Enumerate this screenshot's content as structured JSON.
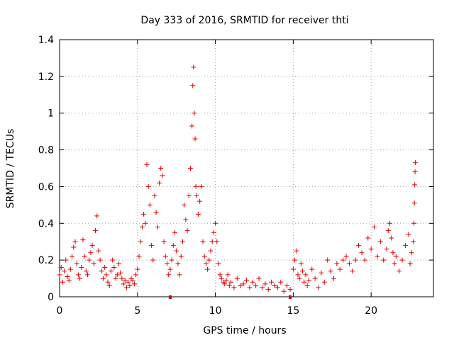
{
  "chart_data": {
    "type": "scatter",
    "title": "Day 333 of 2016, SRMTID for receiver thti",
    "xlabel": "GPS time / hours",
    "ylabel": "SRMTID / TECUs",
    "xlim": [
      0,
      24
    ],
    "ylim": [
      0,
      1.4
    ],
    "xticks": [
      0,
      5,
      10,
      15,
      20
    ],
    "xtick_labels": [
      "0",
      "5",
      "10",
      "15",
      "20"
    ],
    "yticks": [
      0,
      0.2,
      0.4,
      0.6,
      0.8,
      1.0,
      1.2,
      1.4
    ],
    "ytick_labels": [
      "0",
      "0.2",
      "0.4",
      "0.6",
      "0.8",
      "1",
      "1.2",
      "1.4"
    ],
    "grid": true,
    "marker": "plus",
    "color": "#e00000",
    "axis_markers_x": [
      7.1,
      14.8
    ],
    "series": [
      {
        "name": "SRMTID",
        "x": [
          0.0,
          0.1,
          0.2,
          0.3,
          0.4,
          0.5,
          0.6,
          0.7,
          0.8,
          0.9,
          1.0,
          1.1,
          1.2,
          1.3,
          1.4,
          1.5,
          1.6,
          1.7,
          1.8,
          1.9,
          2.0,
          2.1,
          2.2,
          2.3,
          2.4,
          2.5,
          2.6,
          2.7,
          2.8,
          2.9,
          3.0,
          3.1,
          3.2,
          3.3,
          3.4,
          3.5,
          3.6,
          3.7,
          3.8,
          3.9,
          4.0,
          4.1,
          4.2,
          4.3,
          4.4,
          4.5,
          4.6,
          4.7,
          4.8,
          4.9,
          5.0,
          5.1,
          5.2,
          5.3,
          5.4,
          5.5,
          5.6,
          5.7,
          5.8,
          5.9,
          6.0,
          6.1,
          6.2,
          6.3,
          6.4,
          6.5,
          6.6,
          6.7,
          6.8,
          6.9,
          7.0,
          7.1,
          7.2,
          7.3,
          7.4,
          7.5,
          7.6,
          7.7,
          7.8,
          7.9,
          8.0,
          8.1,
          8.2,
          8.3,
          8.4,
          8.5,
          8.55,
          8.6,
          8.65,
          8.7,
          8.75,
          8.8,
          8.9,
          9.0,
          9.1,
          9.2,
          9.3,
          9.4,
          9.5,
          9.6,
          9.7,
          9.8,
          9.9,
          10.0,
          10.1,
          10.2,
          10.3,
          10.4,
          10.5,
          10.6,
          10.7,
          10.8,
          10.9,
          11.0,
          11.2,
          11.4,
          11.6,
          11.8,
          12.0,
          12.2,
          12.4,
          12.6,
          12.8,
          13.0,
          13.2,
          13.4,
          13.6,
          13.8,
          14.0,
          14.2,
          14.4,
          14.6,
          14.8,
          15.0,
          15.1,
          15.2,
          15.3,
          15.4,
          15.5,
          15.6,
          15.7,
          15.8,
          15.9,
          16.0,
          16.2,
          16.4,
          16.6,
          16.8,
          17.0,
          17.2,
          17.4,
          17.6,
          17.8,
          18.0,
          18.2,
          18.4,
          18.6,
          18.8,
          19.0,
          19.2,
          19.4,
          19.6,
          19.8,
          20.0,
          20.2,
          20.4,
          20.6,
          20.8,
          21.0,
          21.1,
          21.2,
          21.3,
          21.4,
          21.5,
          21.6,
          21.8,
          22.0,
          22.2,
          22.4,
          22.5,
          22.6,
          22.7,
          22.75,
          22.78,
          22.8,
          22.82,
          22.84
        ],
        "y": [
          0.12,
          0.16,
          0.08,
          0.14,
          0.2,
          0.11,
          0.09,
          0.15,
          0.22,
          0.27,
          0.3,
          0.18,
          0.12,
          0.1,
          0.16,
          0.31,
          0.22,
          0.14,
          0.12,
          0.2,
          0.24,
          0.28,
          0.18,
          0.36,
          0.44,
          0.25,
          0.2,
          0.14,
          0.1,
          0.16,
          0.12,
          0.08,
          0.06,
          0.14,
          0.2,
          0.16,
          0.1,
          0.12,
          0.18,
          0.13,
          0.1,
          0.07,
          0.09,
          0.05,
          0.08,
          0.06,
          0.1,
          0.09,
          0.07,
          0.12,
          0.15,
          0.22,
          0.3,
          0.38,
          0.45,
          0.4,
          0.72,
          0.6,
          0.5,
          0.28,
          0.2,
          0.55,
          0.46,
          0.38,
          0.62,
          0.7,
          0.66,
          0.3,
          0.22,
          0.18,
          0.12,
          0.15,
          0.2,
          0.28,
          0.35,
          0.25,
          0.18,
          0.12,
          0.22,
          0.3,
          0.5,
          0.42,
          0.36,
          0.55,
          0.7,
          0.93,
          1.15,
          1.25,
          1.0,
          0.86,
          0.6,
          0.55,
          0.45,
          0.52,
          0.6,
          0.3,
          0.22,
          0.18,
          0.15,
          0.2,
          0.25,
          0.3,
          0.35,
          0.4,
          0.3,
          0.18,
          0.12,
          0.1,
          0.08,
          0.07,
          0.09,
          0.12,
          0.06,
          0.08,
          0.05,
          0.1,
          0.06,
          0.07,
          0.09,
          0.05,
          0.08,
          0.06,
          0.1,
          0.05,
          0.07,
          0.04,
          0.08,
          0.06,
          0.05,
          0.08,
          0.03,
          0.06,
          0.04,
          0.15,
          0.2,
          0.25,
          0.12,
          0.1,
          0.18,
          0.14,
          0.08,
          0.12,
          0.06,
          0.09,
          0.15,
          0.1,
          0.05,
          0.13,
          0.08,
          0.2,
          0.14,
          0.1,
          0.18,
          0.15,
          0.2,
          0.22,
          0.18,
          0.14,
          0.2,
          0.28,
          0.24,
          0.2,
          0.32,
          0.26,
          0.38,
          0.22,
          0.3,
          0.2,
          0.26,
          0.36,
          0.4,
          0.32,
          0.24,
          0.18,
          0.22,
          0.14,
          0.2,
          0.28,
          0.34,
          0.18,
          0.24,
          0.3,
          0.4,
          0.51,
          0.61,
          0.68,
          0.73
        ]
      }
    ]
  }
}
